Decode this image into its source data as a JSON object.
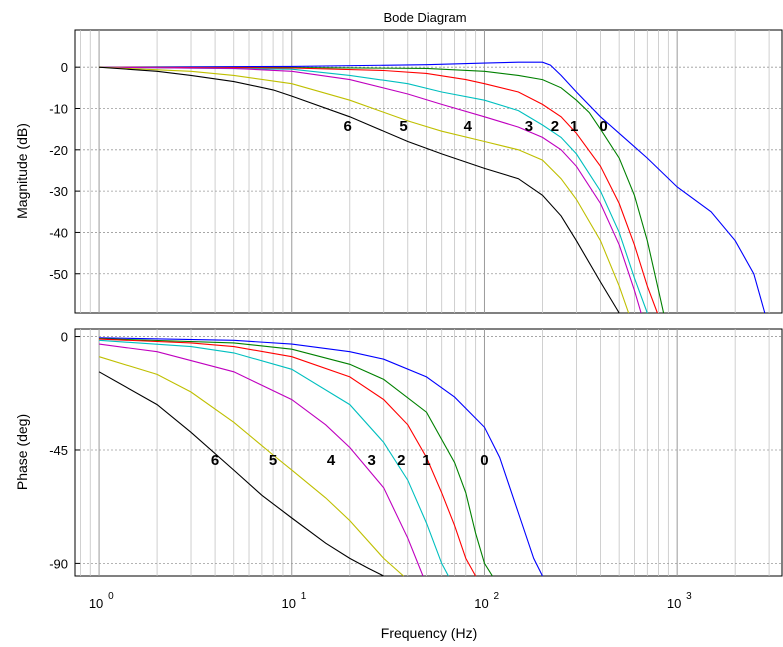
{
  "chart_data": {
    "type": "line",
    "title": "Bode Diagram",
    "xlabel": "Frequency  (Hz)",
    "x_scale": "log",
    "xlim": [
      0.75,
      3500
    ],
    "x_ticks": [
      {
        "base": "10",
        "exp": "0"
      },
      {
        "base": "10",
        "exp": "1"
      },
      {
        "base": "10",
        "exp": "2"
      },
      {
        "base": "10",
        "exp": "3"
      }
    ],
    "grid": true,
    "series_colors": [
      "#0000ff",
      "#008000",
      "#ff0000",
      "#00bfbf",
      "#bf00bf",
      "#bfbf00",
      "#000000"
    ],
    "panels": [
      {
        "id": "magnitude",
        "ylabel": "Magnitude (dB)",
        "ylim": [
          -59.5,
          9
        ],
        "y_ticks": [
          "0",
          "-10",
          "-20",
          "-30",
          "-40",
          "-50"
        ],
        "y_tick_values": [
          0,
          -10,
          -20,
          -30,
          -40,
          -50
        ],
        "curve_labels": [
          {
            "text": "6",
            "x": 19.5,
            "y": -15.5
          },
          {
            "text": "5",
            "x": 38,
            "y": -15.5
          },
          {
            "text": "4",
            "x": 82,
            "y": -15.5
          },
          {
            "text": "3",
            "x": 170,
            "y": -15.5
          },
          {
            "text": "2",
            "x": 232,
            "y": -15.5
          },
          {
            "text": "1",
            "x": 292,
            "y": -15.5
          },
          {
            "text": "0",
            "x": 415,
            "y": -15.5
          }
        ],
        "series": [
          {
            "label": "0",
            "x": [
              1,
              10,
              50,
              100,
              150,
              200,
              220,
              250,
              300,
              400,
              500,
              700,
              1000,
              1500,
              2000,
              2500,
              2850
            ],
            "y": [
              0,
              0.2,
              0.6,
              1,
              1.2,
              1.2,
              0.5,
              -2,
              -6,
              -12,
              -16,
              -22,
              -29,
              -35,
              -42,
              -50,
              -59.5
            ]
          },
          {
            "label": "1",
            "x": [
              1,
              10,
              50,
              100,
              150,
              200,
              250,
              300,
              350,
              400,
              500,
              600,
              700,
              800,
              850
            ],
            "y": [
              0,
              -0.1,
              -0.3,
              -1,
              -2,
              -3,
              -5,
              -8,
              -11,
              -15,
              -22,
              -31,
              -42,
              -54,
              -59.5
            ]
          },
          {
            "label": "2",
            "x": [
              1,
              10,
              30,
              50,
              80,
              100,
              150,
              200,
              250,
              300,
              400,
              500,
              600,
              700,
              790
            ],
            "y": [
              0,
              -0.2,
              -0.8,
              -1.5,
              -3,
              -4,
              -6,
              -9,
              -12,
              -16,
              -24,
              -33,
              -43,
              -53,
              -59.5
            ]
          },
          {
            "label": "3",
            "x": [
              1,
              10,
              20,
              40,
              60,
              100,
              150,
              200,
              250,
              300,
              400,
              500,
              600,
              700
            ],
            "y": [
              0,
              -0.5,
              -2,
              -4,
              -6,
              -8,
              -10.5,
              -14,
              -17,
              -21,
              -30,
              -40,
              -51,
              -59.5
            ]
          },
          {
            "label": "4",
            "x": [
              1,
              5,
              10,
              20,
              40,
              60,
              100,
              150,
              200,
              250,
              300,
              400,
              500,
              600,
              650
            ],
            "y": [
              0,
              -0.3,
              -1,
              -3,
              -6.5,
              -9,
              -12,
              -14.5,
              -17,
              -20,
              -24,
              -33,
              -43,
              -54,
              -59.5
            ]
          },
          {
            "label": "5",
            "x": [
              1,
              3,
              5,
              10,
              20,
              40,
              60,
              100,
              150,
              200,
              250,
              300,
              400,
              500,
              560
            ],
            "y": [
              0,
              -1,
              -2,
              -4,
              -8,
              -13,
              -15.5,
              -18,
              -20,
              -22.5,
              -27,
              -32,
              -42,
              -53,
              -59.5
            ]
          },
          {
            "label": "6",
            "x": [
              1,
              2,
              3,
              5,
              8,
              10,
              20,
              40,
              60,
              100,
              150,
              200,
              250,
              300,
              400,
              500
            ],
            "y": [
              0,
              -1,
              -2,
              -3.5,
              -5.5,
              -7,
              -12,
              -18,
              -21,
              -24.5,
              -27,
              -31,
              -36,
              -42,
              -52,
              -59.5
            ]
          }
        ]
      },
      {
        "id": "phase",
        "ylabel": "Phase (deg)",
        "ylim": [
          -95,
          3
        ],
        "y_ticks": [
          "0",
          "-45",
          "-90"
        ],
        "y_tick_values": [
          0,
          -45,
          -90
        ],
        "curve_labels": [
          {
            "text": "6",
            "x": 4,
            "y": -51
          },
          {
            "text": "5",
            "x": 8,
            "y": -51
          },
          {
            "text": "4",
            "x": 16,
            "y": -51
          },
          {
            "text": "3",
            "x": 26,
            "y": -51
          },
          {
            "text": "2",
            "x": 37,
            "y": -51
          },
          {
            "text": "1",
            "x": 50,
            "y": -51
          },
          {
            "text": "0",
            "x": 100,
            "y": -51
          }
        ],
        "series": [
          {
            "label": "0",
            "x": [
              1,
              5,
              10,
              20,
              30,
              50,
              70,
              100,
              120,
              150,
              180,
              200
            ],
            "y": [
              -0.5,
              -1.5,
              -3,
              -6,
              -9,
              -16,
              -24,
              -36,
              -48,
              -70,
              -88,
              -95
            ]
          },
          {
            "label": "1",
            "x": [
              1,
              5,
              10,
              20,
              30,
              50,
              70,
              80,
              90,
              100,
              110
            ],
            "y": [
              -0.8,
              -2.5,
              -5,
              -11,
              -17,
              -30,
              -50,
              -62,
              -78,
              -90,
              -95
            ]
          },
          {
            "label": "2",
            "x": [
              1,
              3,
              5,
              10,
              20,
              30,
              40,
              50,
              60,
              70,
              80,
              90
            ],
            "y": [
              -1,
              -2.5,
              -4,
              -8,
              -16,
              -25,
              -35,
              -48,
              -62,
              -75,
              -88,
              -95
            ]
          },
          {
            "label": "3",
            "x": [
              1,
              3,
              5,
              10,
              20,
              30,
              40,
              50,
              60,
              65
            ],
            "y": [
              -1.5,
              -4,
              -6.5,
              -13,
              -27,
              -42,
              -57,
              -74,
              -90,
              -95
            ]
          },
          {
            "label": "4",
            "x": [
              1,
              2,
              5,
              10,
              15,
              20,
              30,
              40,
              48
            ],
            "y": [
              -3,
              -6,
              -14,
              -25,
              -35,
              -44,
              -60,
              -80,
              -95
            ]
          },
          {
            "label": "5",
            "x": [
              1,
              2,
              3,
              5,
              8,
              10,
              15,
              20,
              30,
              38
            ],
            "y": [
              -8,
              -15,
              -22,
              -34,
              -47,
              -53,
              -64,
              -73,
              -88,
              -95
            ]
          },
          {
            "label": "6",
            "x": [
              1,
              2,
              3,
              5,
              7,
              10,
              15,
              20,
              25,
              30
            ],
            "y": [
              -14,
              -27,
              -38,
              -53,
              -63,
              -72,
              -82,
              -88,
              -92,
              -95
            ]
          }
        ]
      }
    ]
  }
}
